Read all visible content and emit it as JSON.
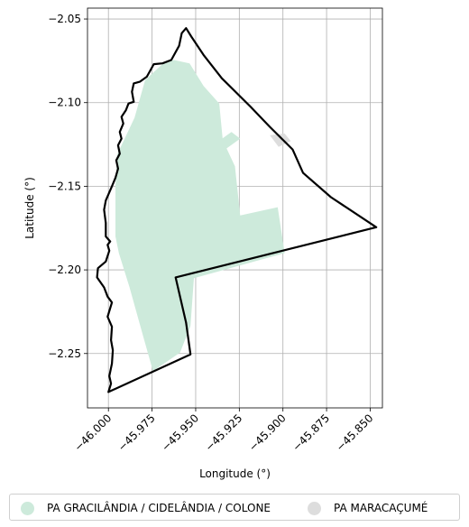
{
  "map": {
    "xlabel": "Longitude (°)",
    "ylabel": "Latitude (°)",
    "xlim": [
      -46.012,
      -45.843
    ],
    "ylim": [
      -2.2825,
      -2.0435
    ],
    "x_ticks": [
      -46.0,
      -45.975,
      -45.95,
      -45.925,
      -45.9,
      -45.875,
      -45.85
    ],
    "x_tick_labels": [
      "−46.000",
      "−45.975",
      "−45.950",
      "−45.925",
      "−45.900",
      "−45.875",
      "−45.850"
    ],
    "y_ticks": [
      -2.05,
      -2.1,
      -2.15,
      -2.2,
      -2.25
    ],
    "y_tick_labels": [
      "−2.05",
      "−2.10",
      "−2.15",
      "−2.20",
      "−2.25"
    ],
    "grid": true,
    "colors": {
      "boundary": "#000000",
      "gracilandia": "#cdeadb",
      "maracacume": "#dddddd",
      "grid": "#b0b0b0"
    },
    "layers": [
      {
        "name": "PA GRACILÂNDIA / CIDELÂNDIA / COLONE",
        "color": "#cdeadb",
        "coords": [
          [
            -45.996,
            -2.15
          ],
          [
            -45.996,
            -2.18
          ],
          [
            -45.994,
            -2.19
          ],
          [
            -45.988,
            -2.21
          ],
          [
            -45.98,
            -2.24
          ],
          [
            -45.9745,
            -2.2605
          ],
          [
            -45.959,
            -2.2495
          ],
          [
            -45.953,
            -2.2335
          ],
          [
            -45.951,
            -2.205
          ],
          [
            -45.899,
            -2.19
          ],
          [
            -45.903,
            -2.1625
          ],
          [
            -45.9245,
            -2.1675
          ],
          [
            -45.9275,
            -2.138
          ],
          [
            -45.9345,
            -2.1225
          ],
          [
            -45.9365,
            -2.1005
          ],
          [
            -45.9455,
            -2.09
          ],
          [
            -45.9535,
            -2.0765
          ],
          [
            -45.9625,
            -2.0745
          ],
          [
            -45.968,
            -2.076
          ],
          [
            -45.979,
            -2.0865
          ],
          [
            -45.985,
            -2.109
          ],
          [
            -45.995,
            -2.131
          ]
        ]
      },
      {
        "name": "PA GRACILÂNDIA / CIDELÂNDIA / COLONE",
        "color": "#cdeadb",
        "coords": [
          [
            -45.9395,
            -2.125
          ],
          [
            -45.9295,
            -2.1175
          ],
          [
            -45.9245,
            -2.1215
          ],
          [
            -45.9365,
            -2.1305
          ]
        ]
      },
      {
        "name": "PA MARACAÇUMÉ",
        "color": "#dddddd",
        "coords": [
          [
            -45.9075,
            -2.1195
          ],
          [
            -45.899,
            -2.1185
          ],
          [
            -45.8955,
            -2.123
          ],
          [
            -45.9025,
            -2.1265
          ]
        ]
      },
      {
        "name": "boundary",
        "color": "#000000",
        "coords": [
          [
            -45.9555,
            -2.0555
          ],
          [
            -45.958,
            -2.0585
          ],
          [
            -45.9595,
            -2.066
          ],
          [
            -45.964,
            -2.0745
          ],
          [
            -45.969,
            -2.0765
          ],
          [
            -45.974,
            -2.077
          ],
          [
            -45.978,
            -2.0845
          ],
          [
            -45.982,
            -2.0875
          ],
          [
            -45.9855,
            -2.0885
          ],
          [
            -45.9865,
            -2.0935
          ],
          [
            -45.9855,
            -2.0995
          ],
          [
            -45.9885,
            -2.1005
          ],
          [
            -45.99,
            -2.1045
          ],
          [
            -45.9925,
            -2.1085
          ],
          [
            -45.9915,
            -2.1125
          ],
          [
            -45.9935,
            -2.1175
          ],
          [
            -45.9925,
            -2.1215
          ],
          [
            -45.9945,
            -2.1255
          ],
          [
            -45.9935,
            -2.1305
          ],
          [
            -45.9955,
            -2.1345
          ],
          [
            -45.9945,
            -2.1395
          ],
          [
            -45.996,
            -2.145
          ],
          [
            -45.998,
            -2.15
          ],
          [
            -46.0015,
            -2.1585
          ],
          [
            -46.0025,
            -2.164
          ],
          [
            -46.0015,
            -2.172
          ],
          [
            -46.0015,
            -2.18
          ],
          [
            -45.999,
            -2.183
          ],
          [
            -46.0005,
            -2.185
          ],
          [
            -45.9995,
            -2.1885
          ],
          [
            -46.0015,
            -2.195
          ],
          [
            -46.006,
            -2.199
          ],
          [
            -46.0065,
            -2.2045
          ],
          [
            -46.0025,
            -2.2105
          ],
          [
            -46.0005,
            -2.216
          ],
          [
            -45.998,
            -2.2195
          ],
          [
            -46.0005,
            -2.228
          ],
          [
            -45.998,
            -2.234
          ],
          [
            -45.9985,
            -2.242
          ],
          [
            -45.9975,
            -2.248
          ],
          [
            -45.998,
            -2.256
          ],
          [
            -45.9995,
            -2.2635
          ],
          [
            -45.9985,
            -2.268
          ],
          [
            -46.0,
            -2.273
          ],
          [
            -45.953,
            -2.2505
          ],
          [
            -45.9555,
            -2.2315
          ],
          [
            -45.9615,
            -2.2045
          ],
          [
            -45.8465,
            -2.1745
          ],
          [
            -45.8725,
            -2.1565
          ],
          [
            -45.8885,
            -2.142
          ],
          [
            -45.8945,
            -2.128
          ],
          [
            -45.9075,
            -2.1145
          ],
          [
            -45.9185,
            -2.1025
          ],
          [
            -45.935,
            -2.0855
          ],
          [
            -45.9455,
            -2.0715
          ],
          [
            -45.9525,
            -2.0605
          ],
          [
            -45.9555,
            -2.0555
          ]
        ]
      }
    ]
  },
  "legend": {
    "items": [
      {
        "label": "PA GRACILÂNDIA / CIDELÂNDIA / COLONE",
        "color": "#cdeadb"
      },
      {
        "label": "PA MARACAÇUMÉ",
        "color": "#dddddd"
      }
    ]
  }
}
